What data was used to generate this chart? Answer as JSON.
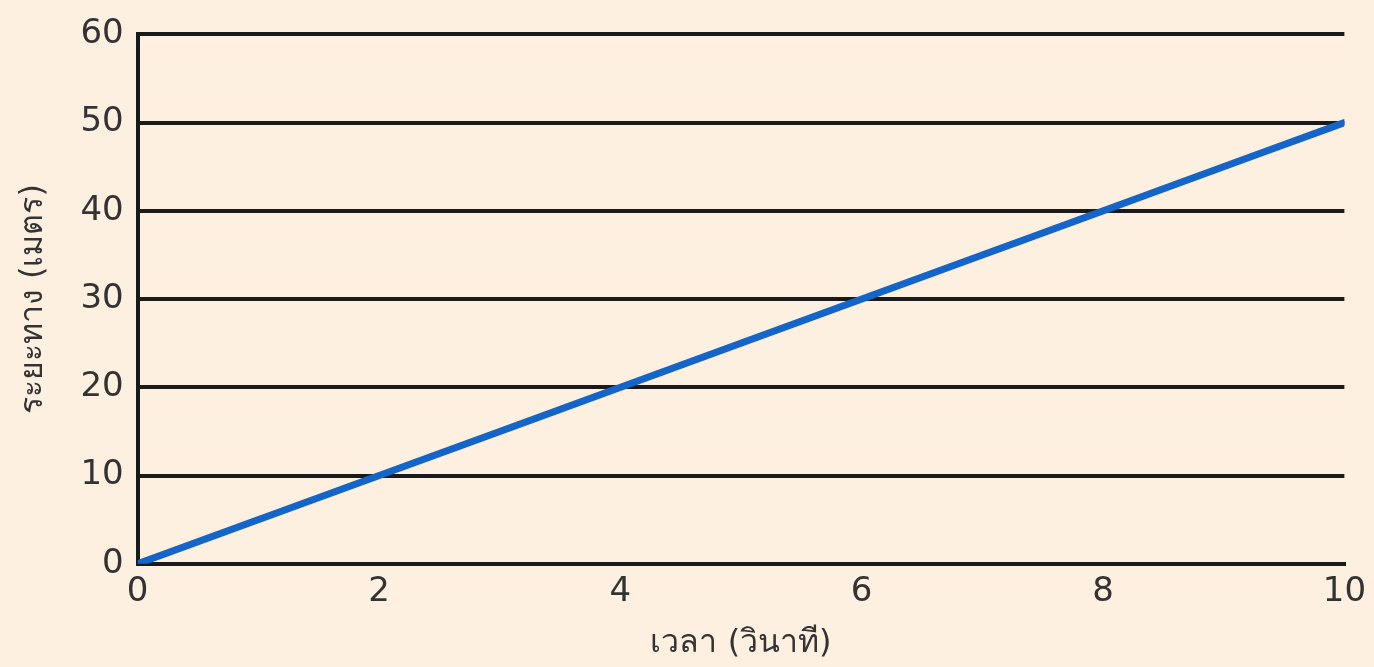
{
  "chart_data": {
    "type": "line",
    "xlabel": "เวลา (วินาที)",
    "ylabel": "ระยะทาง (เมตร)",
    "x": [
      0,
      10
    ],
    "series": [
      {
        "color": "#1565c8",
        "values": [
          0,
          50
        ]
      }
    ],
    "xlim": [
      0,
      10
    ],
    "xticks": [
      0,
      2,
      4,
      6,
      8,
      10
    ],
    "ylim": [
      0,
      60
    ],
    "yticks": [
      0,
      10,
      20,
      30,
      40,
      50,
      60
    ],
    "grid": "y",
    "legend": false,
    "marker": "none",
    "line_style": "solid"
  }
}
